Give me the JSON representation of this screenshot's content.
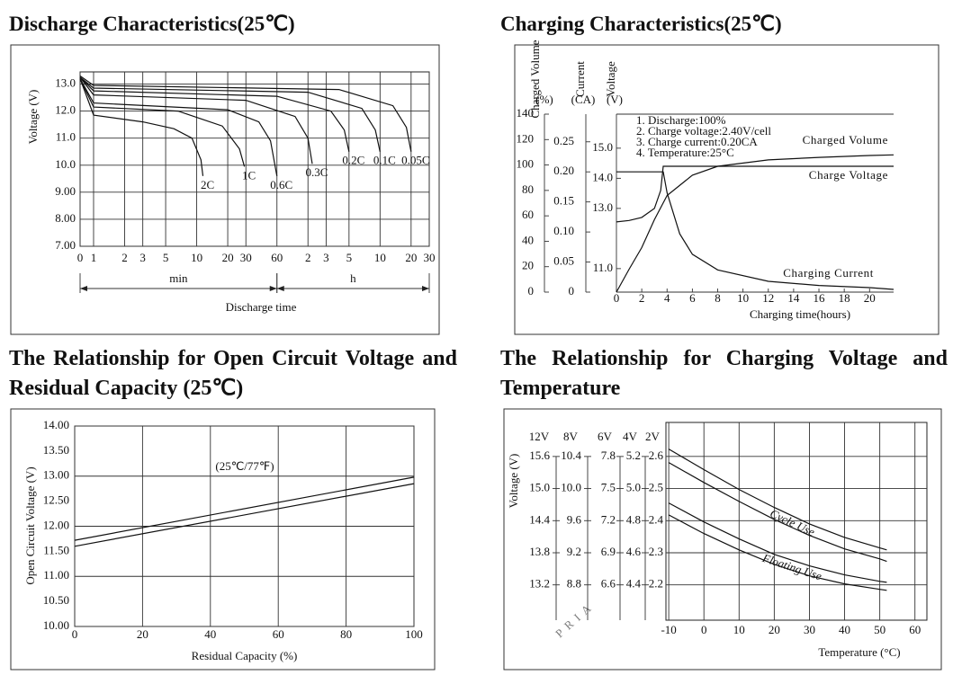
{
  "chart_data": [
    {
      "type": "line",
      "title": "Discharge Characteristics(25℃)",
      "ylabel": "Voltage (V)",
      "xlabel": "Discharge time",
      "color": "#111111",
      "xscale": "log",
      "xlim": [
        0.74,
        1800
      ],
      "ylim": [
        7,
        13.45
      ],
      "grid": true,
      "xticks": [
        {
          "value": 0.74,
          "label": "0"
        },
        1,
        2,
        3,
        5,
        10,
        20,
        30,
        60,
        {
          "value": 120,
          "label": "2"
        },
        {
          "value": 180,
          "label": "3"
        },
        {
          "value": 300,
          "label": "5"
        },
        {
          "value": 600,
          "label": "10"
        },
        {
          "value": 1200,
          "label": "20"
        },
        {
          "value": 1800,
          "label": "30"
        }
      ],
      "yticks": [
        {
          "value": 13,
          "label": "13.0"
        },
        {
          "value": 12,
          "label": "12.0"
        },
        {
          "value": 11,
          "label": "11.0"
        },
        {
          "value": 10,
          "label": "10.0"
        },
        {
          "value": 9,
          "label": "9.00"
        },
        {
          "value": 8,
          "label": "8.00"
        },
        {
          "value": 7,
          "label": "7.00"
        }
      ],
      "x_ranges": [
        {
          "label": "min",
          "range": [
            0.74,
            60
          ]
        },
        {
          "label": "h",
          "range": [
            60,
            1800
          ]
        }
      ],
      "series": [
        {
          "name": "2C",
          "x": [
            0.74,
            1,
            3,
            6,
            9,
            11,
            11.5
          ],
          "values": [
            13.2,
            11.85,
            11.6,
            11.35,
            11.0,
            10.2,
            9.6
          ]
        },
        {
          "name": "1C",
          "x": [
            0.74,
            1,
            6.6,
            17.7,
            26,
            29
          ],
          "values": [
            13.2,
            12.15,
            12.0,
            11.45,
            10.6,
            9.95
          ]
        },
        {
          "name": "0.6C",
          "x": [
            0.74,
            1,
            20,
            40,
            52,
            60
          ],
          "values": [
            13.2,
            12.3,
            12.05,
            11.6,
            10.9,
            9.6
          ]
        },
        {
          "name": "0.3C",
          "x": [
            0.74,
            1,
            30,
            90,
            120,
            132
          ],
          "values": [
            13.25,
            12.6,
            12.4,
            11.8,
            11.0,
            10.05
          ]
        },
        {
          "name": "0.2C",
          "x": [
            0.74,
            1,
            60,
            200,
            270,
            300
          ],
          "values": [
            13.25,
            12.75,
            12.55,
            12.0,
            11.3,
            10.5
          ]
        },
        {
          "name": "0.1C",
          "x": [
            0.74,
            1,
            120,
            400,
            540,
            600
          ],
          "values": [
            13.25,
            12.85,
            12.7,
            12.1,
            11.3,
            10.5
          ]
        },
        {
          "name": "0.05C",
          "x": [
            0.74,
            1,
            240,
            800,
            1080,
            1200
          ],
          "values": [
            13.3,
            12.95,
            12.8,
            12.2,
            11.4,
            10.5
          ]
        }
      ]
    },
    {
      "type": "line",
      "title": "Charging Characteristics(25℃)",
      "xlabel": "Charging time(hours)",
      "color": "#111111",
      "xlim": [
        0,
        21.9
      ],
      "xticks": [
        0,
        2,
        4,
        6,
        8,
        10,
        12,
        14,
        16,
        18,
        20
      ],
      "y_axes": [
        {
          "label": "Charged Volume",
          "unit": "(%)",
          "lim": [
            0,
            140
          ],
          "ticks": [
            0,
            20,
            40,
            60,
            80,
            100,
            120,
            140
          ]
        },
        {
          "label": "Current",
          "unit": "(CA)",
          "lim": [
            0,
            0.296
          ],
          "ticks": [
            0,
            0.05,
            {
              "value": 0.1,
              "label": "0.10"
            },
            0.15,
            {
              "value": 0.2,
              "label": "0.20"
            },
            0.25
          ]
        },
        {
          "label": "Voltage",
          "unit": "(V)",
          "lim": [
            10.22,
            16.13
          ],
          "ticks": [
            {
              "value": 11,
              "label": "11.0"
            },
            {
              "value": 13,
              "label": "13.0"
            },
            {
              "value": 14,
              "label": "14.0"
            },
            {
              "value": 15,
              "label": "15.0"
            }
          ]
        }
      ],
      "annotations": [
        "1. Discharge:100%",
        "2. Charge voltage:2.40V/cell",
        "3. Charge current:0.20CA",
        "4. Temperature:25°C"
      ],
      "series": [
        {
          "name": "Charged Volume",
          "axis": 0,
          "x": [
            0,
            1,
            2,
            3,
            4,
            6,
            8,
            12,
            16,
            20,
            21.9
          ],
          "values": [
            0,
            18,
            35,
            57,
            76,
            92,
            99,
            104,
            106,
            107.5,
            108
          ]
        },
        {
          "name": "Charge Voltage",
          "axis": 2,
          "x": [
            0,
            1,
            2,
            3,
            3.5,
            3.7,
            4,
            10,
            21.9
          ],
          "values": [
            12.55,
            12.6,
            12.7,
            13.0,
            13.6,
            14.4,
            14.4,
            14.4,
            14.4
          ]
        },
        {
          "name": "Charging Current",
          "axis": 1,
          "x": [
            0,
            3.7,
            4,
            5,
            6,
            8,
            12,
            16,
            20,
            21.9
          ],
          "values": [
            0.2,
            0.2,
            0.165,
            0.097,
            0.063,
            0.037,
            0.018,
            0.011,
            0.0075,
            0.0045
          ]
        }
      ]
    },
    {
      "type": "line",
      "title": "The Relationship for Open Circuit Voltage and Residual Capacity (25℃)",
      "xlabel": "Residual Capacity (%)",
      "ylabel": "Open Circuit Voltage (V)",
      "annotation": "(25℃/77℉)",
      "color": "#111111",
      "xlim": [
        0,
        100
      ],
      "xticks": [
        0,
        20,
        40,
        60,
        80,
        100
      ],
      "ylim": [
        10,
        14
      ],
      "yticks": [
        {
          "value": 10,
          "label": "10.00"
        },
        {
          "value": 10.5,
          "label": "10.50"
        },
        {
          "value": 11,
          "label": "11.00"
        },
        {
          "value": 11.5,
          "label": "11.50"
        },
        {
          "value": 12,
          "label": "12.00"
        },
        {
          "value": 12.5,
          "label": "12.50"
        },
        {
          "value": 13,
          "label": "13.00"
        },
        {
          "value": 13.5,
          "label": "13.50"
        },
        {
          "value": 14,
          "label": "14.00"
        }
      ],
      "ygrid": [
        10,
        11,
        12,
        13,
        14
      ],
      "x": [
        0,
        100
      ],
      "series": [
        {
          "values": [
            11.72,
            12.98
          ]
        },
        {
          "values": [
            11.6,
            12.85
          ]
        }
      ]
    },
    {
      "type": "line",
      "title": "The Relationship for Charging Voltage and Temperature",
      "xlabel": "Temperature (°C)",
      "ylabel": "Voltage (V)",
      "color": "#111111",
      "xlim": [
        -10.8,
        63.4
      ],
      "xticks": [
        -10,
        0,
        10,
        20,
        30,
        40,
        50,
        60
      ],
      "y_axes": [
        {
          "label": "12V",
          "lim": [
            12.54,
            16.236
          ],
          "ticks": [
            15.6,
            {
              "value": 15,
              "label": "15.0"
            },
            14.4,
            13.8,
            13.2
          ]
        },
        {
          "label": "8V",
          "lim": [
            8.36,
            10.824
          ],
          "ticks": [
            10.4,
            {
              "value": 10,
              "label": "10.0"
            },
            9.6,
            9.2,
            8.8
          ]
        },
        {
          "label": "6V",
          "lim": [
            6.27,
            8.118
          ],
          "ticks": [
            7.8,
            7.5,
            7.2,
            6.9,
            6.6
          ]
        },
        {
          "label": "4V",
          "lim": [
            4.18,
            5.412
          ],
          "ticks": [
            5.2,
            {
              "value": 5,
              "label": "5.0"
            },
            4.8,
            4.6,
            4.4
          ]
        },
        {
          "label": "2V",
          "lim": [
            2.09,
            2.706
          ],
          "ticks": [
            2.6,
            2.5,
            2.4,
            2.3,
            2.2
          ]
        }
      ],
      "x": [
        -10,
        0,
        10,
        20,
        30,
        40,
        50,
        52
      ],
      "series": [
        {
          "name": "Cycle Use",
          "axis": 4,
          "values": [
            2.623,
            2.559,
            2.497,
            2.441,
            2.39,
            2.348,
            2.315,
            2.309
          ]
        },
        {
          "axis": 4,
          "values": [
            2.581,
            2.519,
            2.46,
            2.404,
            2.354,
            2.312,
            2.281,
            2.273
          ]
        },
        {
          "name": "Floating Use",
          "axis": 4,
          "values": [
            2.455,
            2.396,
            2.343,
            2.295,
            2.259,
            2.231,
            2.211,
            2.208
          ]
        },
        {
          "axis": 4,
          "values": [
            2.418,
            2.36,
            2.309,
            2.264,
            2.228,
            2.203,
            2.186,
            2.183
          ]
        }
      ]
    }
  ],
  "watermark": "PRIA"
}
